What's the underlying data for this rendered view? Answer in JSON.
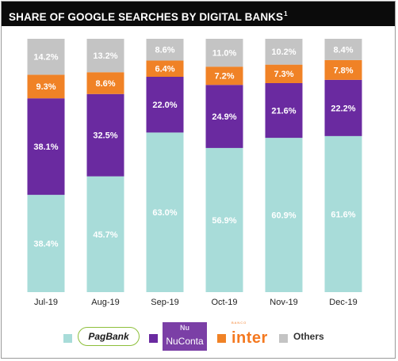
{
  "header": {
    "title": "SHARE OF GOOGLE SEARCHES BY DIGITAL BANKS",
    "title_superscript": "1"
  },
  "legend": {
    "pagbank": "PagBank",
    "nuconta_top": "Nu",
    "nuconta_name": "NuConta",
    "inter_small": "BANCO",
    "inter": "inter",
    "others": "Others"
  },
  "colors": {
    "pagbank": "#a8dcd9",
    "nuconta": "#6a2aa0",
    "inter": "#f08226",
    "others": "#c4c4c4"
  },
  "chart_data": {
    "type": "bar",
    "stacked": true,
    "percent": true,
    "categories": [
      "Jul-19",
      "Aug-19",
      "Sep-19",
      "Oct-19",
      "Nov-19",
      "Dec-19"
    ],
    "series": [
      {
        "name": "PagBank",
        "values": [
          38.4,
          45.7,
          63.0,
          56.9,
          60.9,
          61.6
        ],
        "labels": [
          "38.4%",
          "45.7%",
          "63.0%",
          "56.9%",
          "60.9%",
          "61.6%"
        ]
      },
      {
        "name": "NuConta",
        "values": [
          38.1,
          32.5,
          22.0,
          24.9,
          21.6,
          22.2
        ],
        "labels": [
          "38.1%",
          "32.5%",
          "22.0%",
          "24.9%",
          "21.6%",
          "22.2%"
        ]
      },
      {
        "name": "inter",
        "values": [
          9.3,
          8.6,
          6.4,
          7.2,
          7.3,
          7.8
        ],
        "labels": [
          "9.3%",
          "8.6%",
          "6.4%",
          "7.2%",
          "7.3%",
          "7.8%"
        ]
      },
      {
        "name": "Others",
        "values": [
          14.2,
          13.2,
          8.6,
          11.0,
          10.2,
          8.4
        ],
        "labels": [
          "14.2%",
          "13.2%",
          "8.6%",
          "11.0%",
          "10.2%",
          "8.4%"
        ]
      }
    ],
    "ylim": [
      0,
      100
    ],
    "grid": false,
    "legend_position": "bottom"
  }
}
